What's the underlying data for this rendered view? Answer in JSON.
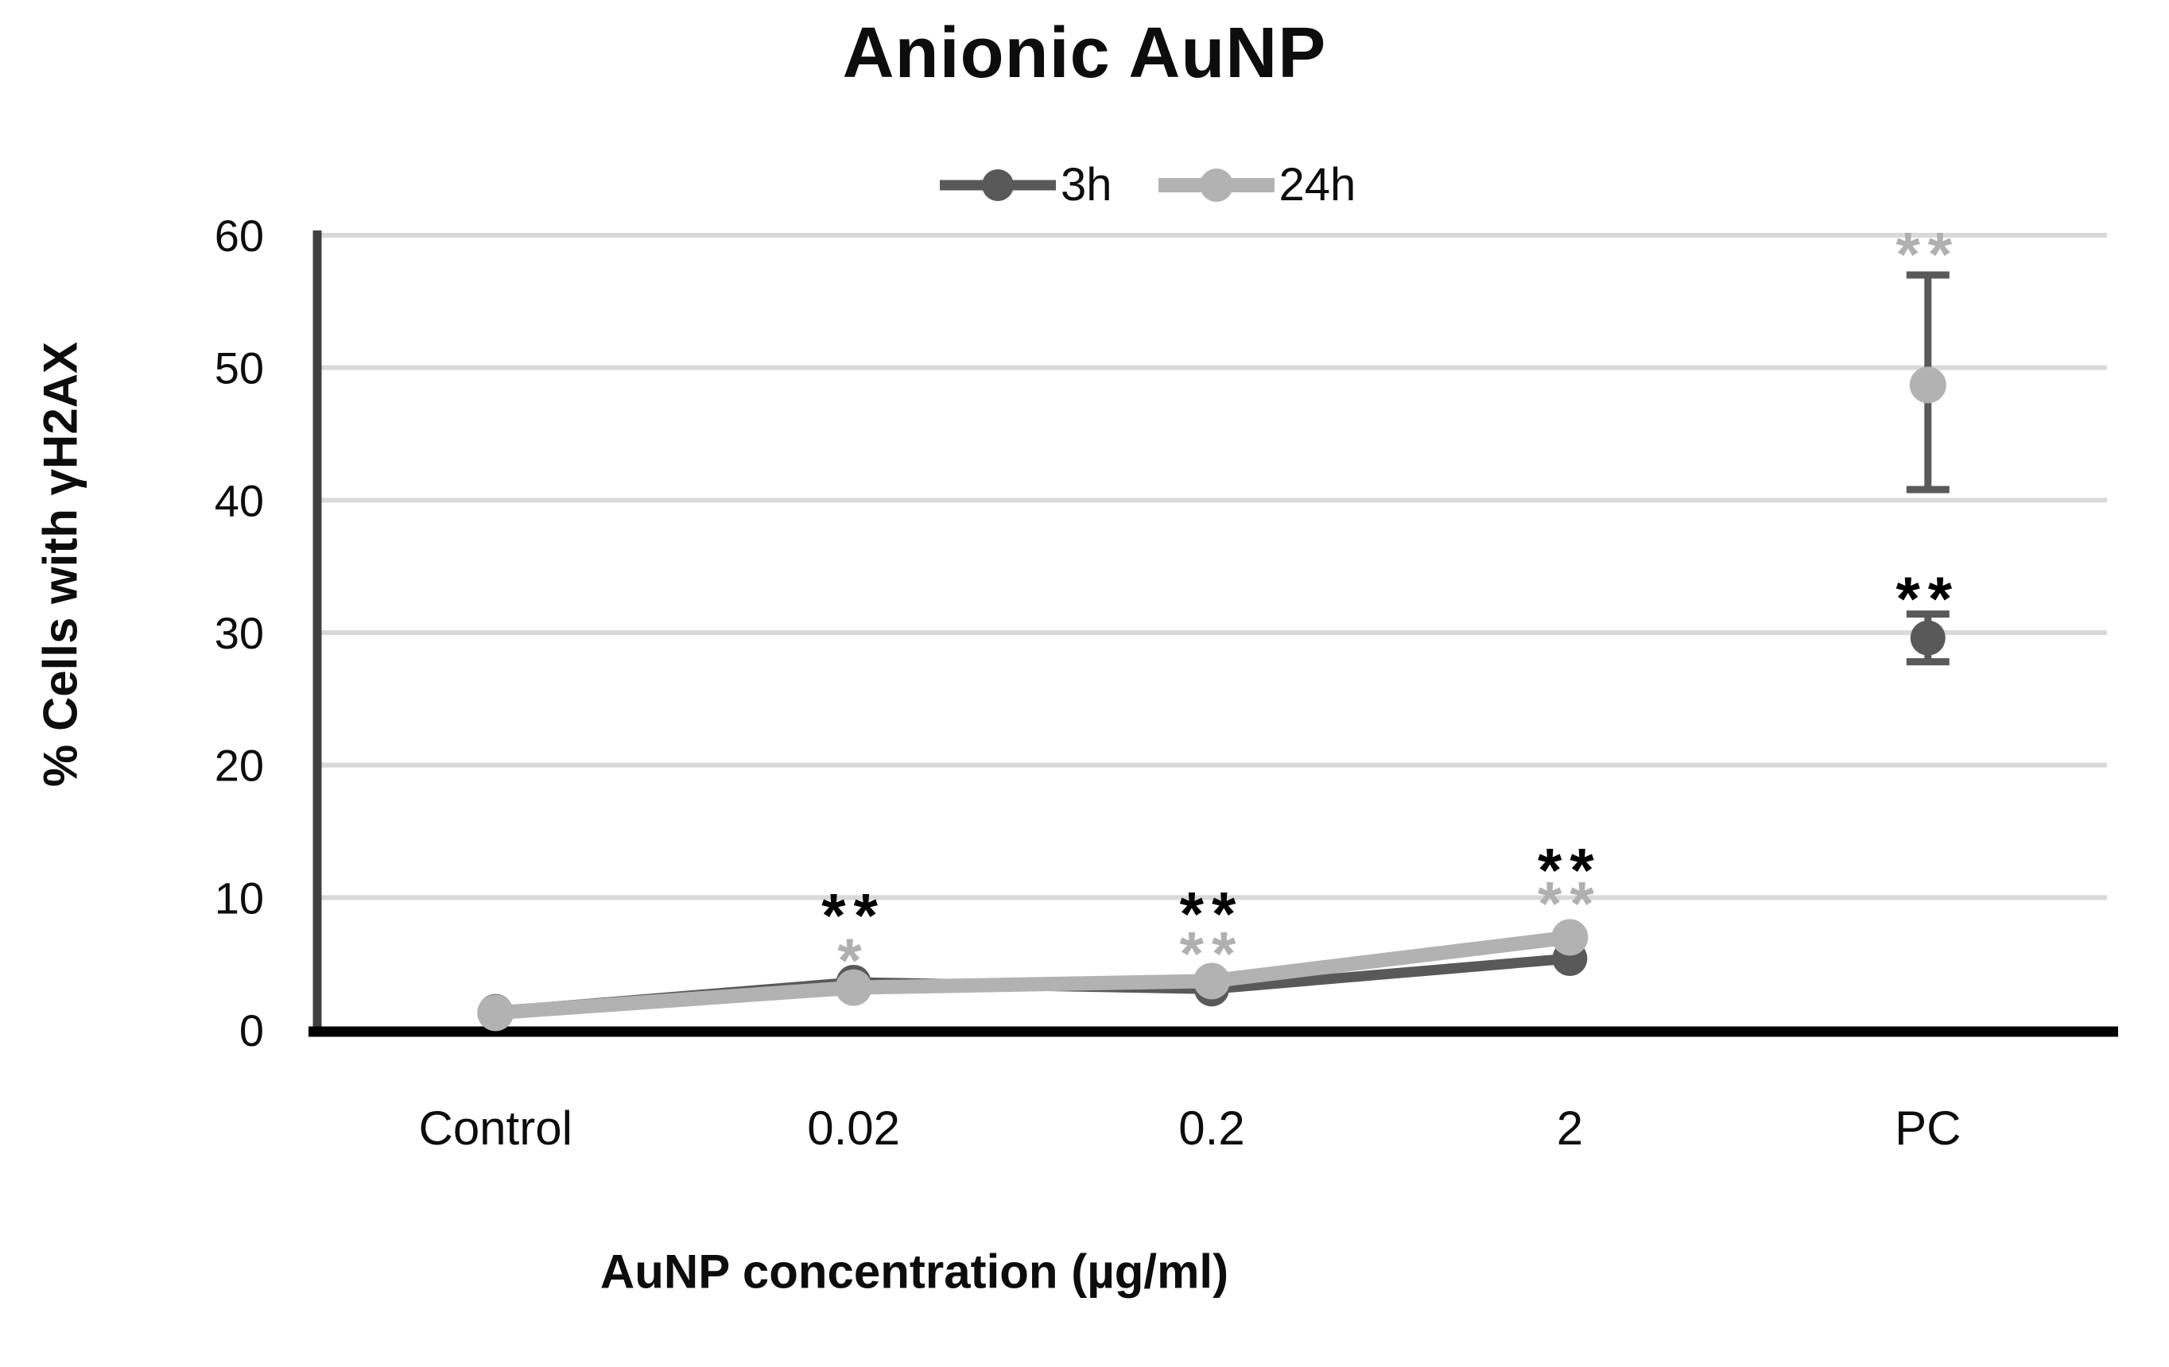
{
  "title": "Anionic AuNP",
  "chart_data": {
    "type": "line",
    "title": "Anionic AuNP",
    "x_axis_title": "AuNP concentration (µg/ml)",
    "y_axis_title": "% Cells with γH2AX",
    "categories": [
      "Control",
      "0.02",
      "0.2",
      "2",
      "PC"
    ],
    "ylim": [
      0,
      60
    ],
    "yticks": [
      0,
      10,
      20,
      30,
      40,
      50,
      60
    ],
    "grid": true,
    "legend_position": "top-center",
    "series": [
      {
        "name": "3h",
        "color": "#595959",
        "line_width": 13,
        "marker_radius": 22,
        "values": [
          1.4,
          3.6,
          3.1,
          5.4,
          29.6
        ],
        "line_indices": [
          0,
          1,
          2,
          3
        ],
        "error_bars": [
          {
            "index": 4,
            "up": 1.8,
            "down": 1.8
          }
        ]
      },
      {
        "name": "24h",
        "color": "#b2b2b2",
        "line_width": 18,
        "marker_radius": 23,
        "values": [
          1.3,
          3.2,
          3.7,
          7.0,
          48.7
        ],
        "line_indices": [
          0,
          1,
          2,
          3
        ],
        "error_bars": [
          {
            "index": 4,
            "up": 8.3,
            "down": 7.9
          }
        ]
      }
    ],
    "annotations": [
      {
        "category_index": 1,
        "text": "**",
        "series": "3h",
        "color": "#000000",
        "y": 9.4
      },
      {
        "category_index": 1,
        "text": "*",
        "series": "24h",
        "color": "#b0b0b0",
        "y": 6.0
      },
      {
        "category_index": 2,
        "text": "**",
        "series": "3h",
        "color": "#000000",
        "y": 9.5
      },
      {
        "category_index": 2,
        "text": "**",
        "series": "24h",
        "color": "#b0b0b0",
        "y": 6.5
      },
      {
        "category_index": 3,
        "text": "**",
        "series": "3h",
        "color": "#000000",
        "y": 12.8
      },
      {
        "category_index": 3,
        "text": "**",
        "series": "24h",
        "color": "#b0b0b0",
        "y": 10.3
      },
      {
        "category_index": 4,
        "text": "**",
        "series": "24h",
        "color": "#b0b0b0",
        "y": 59.3
      },
      {
        "category_index": 4,
        "text": "**",
        "series": "3h",
        "color": "#000000",
        "y": 33.3
      }
    ],
    "colors": {
      "gridline": "#d9d9d9",
      "x_axis": "#000000",
      "y_axis": "#404040",
      "error_bar": "#595959",
      "tick_label": "#0d0d0d"
    }
  }
}
